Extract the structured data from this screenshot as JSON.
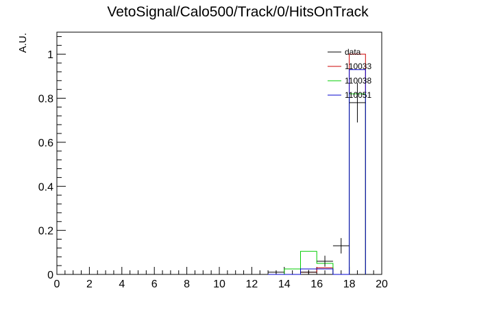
{
  "chart_data": {
    "type": "histogram",
    "title": "VetoSignal/Calo500/Track/0/HitsOnTrack",
    "xlabel": "",
    "ylabel": "A.U.",
    "xlim": [
      0,
      20
    ],
    "ylim": [
      0,
      1.1
    ],
    "x_major_ticks": [
      0,
      2,
      4,
      6,
      8,
      10,
      12,
      14,
      16,
      18,
      20
    ],
    "x_tick_labels": [
      "0",
      "2",
      "4",
      "6",
      "8",
      "10",
      "12",
      "14",
      "16",
      "18",
      "20"
    ],
    "y_major_ticks": [
      0,
      0.2,
      0.4,
      0.6,
      0.8,
      1
    ],
    "y_tick_labels": [
      "0",
      "0.2",
      "0.4",
      "0.6",
      "0.8",
      "1"
    ],
    "bin_edges": [
      13,
      14,
      15,
      16,
      17,
      18,
      19
    ],
    "legend_position": "top-right",
    "series": [
      {
        "name": "110033",
        "kind": "step",
        "color": "#cc0000",
        "values": [
          0.0,
          0.0,
          0.01,
          0.03,
          0.0,
          1.0
        ]
      },
      {
        "name": "110038",
        "kind": "step",
        "color": "#00cc00",
        "values": [
          0.0,
          0.025,
          0.105,
          0.05,
          0.0,
          0.82
        ]
      },
      {
        "name": "110051",
        "kind": "step",
        "color": "#0000cc",
        "values": [
          0.0,
          0.0,
          0.025,
          0.025,
          0.0,
          0.93
        ]
      },
      {
        "name": "data",
        "kind": "points",
        "color": "#000000",
        "points": [
          {
            "x": 13.5,
            "y": 0.01,
            "yerr": 0.008
          },
          {
            "x": 15.5,
            "y": 0.01,
            "yerr": 0.01
          },
          {
            "x": 16.5,
            "y": 0.06,
            "yerr": 0.025
          },
          {
            "x": 17.5,
            "y": 0.13,
            "yerr": 0.035
          },
          {
            "x": 18.5,
            "y": 0.78,
            "yerr": 0.09
          }
        ]
      }
    ]
  }
}
